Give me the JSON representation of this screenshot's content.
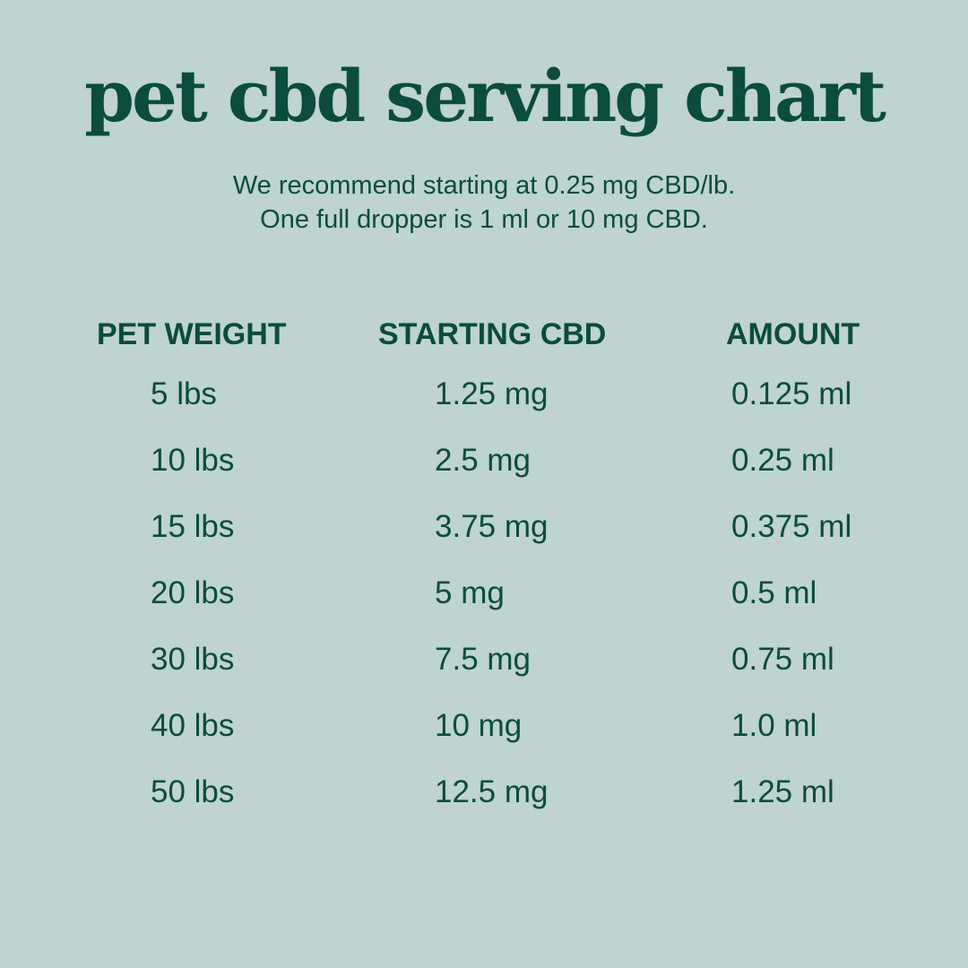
{
  "title": "pet cbd serving chart",
  "subtitle": {
    "line1": "We recommend starting at 0.25 mg CBD/lb.",
    "line2": "One full dropper is 1 ml or 10 mg CBD."
  },
  "colors": {
    "background": "#bfd3d0",
    "text": "#0b4c3e"
  },
  "table": {
    "headers": [
      "PET WEIGHT",
      "STARTING CBD",
      "AMOUNT"
    ],
    "rows": [
      [
        "5 lbs",
        "1.25 mg",
        "0.125 ml"
      ],
      [
        "10 lbs",
        "2.5 mg",
        "0.25 ml"
      ],
      [
        "15 lbs",
        "3.75 mg",
        "0.375 ml"
      ],
      [
        "20 lbs",
        "5 mg",
        "0.5 ml"
      ],
      [
        "30 lbs",
        "7.5 mg",
        "0.75 ml"
      ],
      [
        "40 lbs",
        "10 mg",
        "1.0 ml"
      ],
      [
        "50 lbs",
        "12.5 mg",
        "1.25 ml"
      ]
    ]
  }
}
